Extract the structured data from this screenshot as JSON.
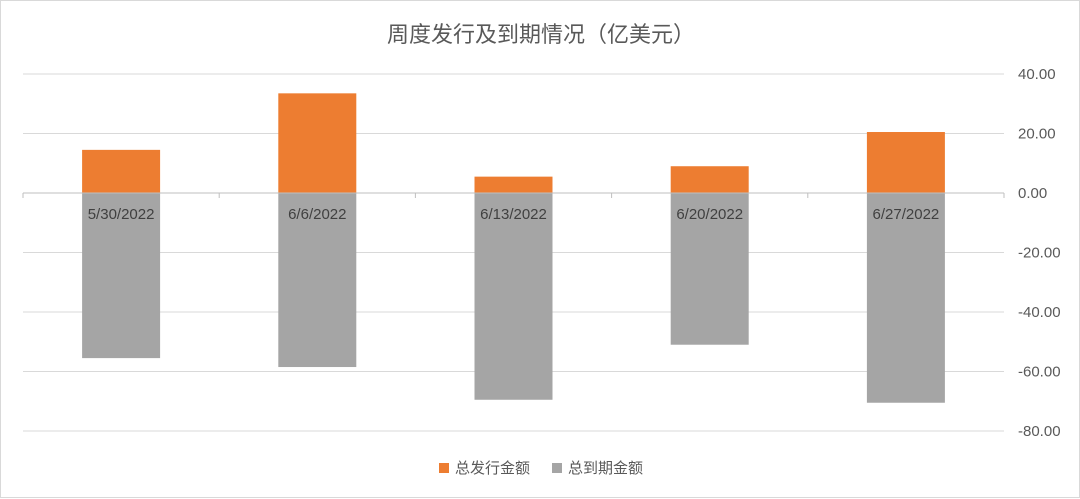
{
  "chart_data": {
    "type": "bar",
    "title": "周度发行及到期情况（亿美元）",
    "categories": [
      "5/30/2022",
      "6/6/2022",
      "6/13/2022",
      "6/20/2022",
      "6/27/2022"
    ],
    "series": [
      {
        "name": "总发行金额",
        "color": "#ED7D31",
        "values": [
          14.5,
          33.5,
          5.5,
          9.0,
          20.5
        ]
      },
      {
        "name": "总到期金额",
        "color": "#A5A5A5",
        "values": [
          -55.5,
          -58.5,
          -69.5,
          -51.0,
          -70.5
        ]
      }
    ],
    "ylim": [
      -80,
      40
    ],
    "yticks": [
      "40.00",
      "20.00",
      "0.00",
      "-20.00",
      "-40.00",
      "-60.00",
      "-80.00"
    ],
    "y_axis_side": "right",
    "grid": true,
    "legend": "bottom"
  }
}
